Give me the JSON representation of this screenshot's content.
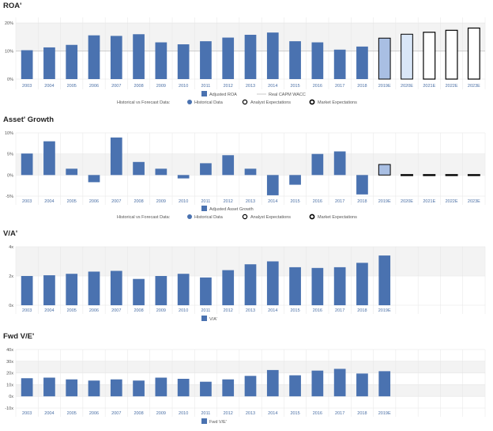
{
  "colors": {
    "bar": "#4a72b0",
    "forecast_fill_1": "#a9bfe3",
    "forecast_fill_2": "#d9e6f7",
    "forecast_stroke": "#000000",
    "grid": "#e6e6e6",
    "band": "#f3f3f3",
    "legend_text": "#555555",
    "axis_tick": "#4a6fa5"
  },
  "legend_labels": {
    "forecast_caption": "Historical vs Forecast Data:",
    "historical": "Historical Data",
    "analyst": "Analyst Expectations",
    "market": "Market Expectations",
    "wacc": "Real CAPM WACC"
  },
  "chart_data": [
    {
      "type": "bar",
      "title": "ROA'",
      "categories": [
        "2003",
        "2004",
        "2005",
        "2006",
        "2007",
        "2008",
        "2009",
        "2010",
        "2011",
        "2012",
        "2013",
        "2014",
        "2015",
        "2016",
        "2017",
        "2018",
        "2019E",
        "2020E",
        "2021E",
        "2022E",
        "2023E"
      ],
      "values": [
        10.3,
        11.3,
        12.2,
        15.6,
        15.4,
        16.0,
        13.1,
        12.4,
        13.5,
        14.8,
        15.8,
        16.6,
        13.5,
        13.1,
        10.5,
        11.6,
        14.6,
        16.0,
        16.7,
        17.4,
        18.2
      ],
      "series": [
        {
          "name": "Adjusted ROA",
          "values": [
            10.3,
            11.3,
            12.2,
            15.6,
            15.4,
            16.0,
            13.1,
            12.4,
            13.5,
            14.8,
            15.8,
            16.6,
            13.5,
            13.1,
            10.5,
            11.6,
            14.6,
            16.0,
            16.7,
            17.4,
            18.2
          ]
        }
      ],
      "forecast_styles": [
        "",
        "",
        "",
        "",
        "",
        "",
        "",
        "",
        "",
        "",
        "",
        "",
        "",
        "",
        "",
        "",
        "analyst1",
        "analyst2",
        "market",
        "market",
        "market"
      ],
      "ylim": [
        0,
        22
      ],
      "yticks": [
        0,
        10,
        20
      ],
      "ytick_labels": [
        "0%",
        "10%",
        "20%"
      ],
      "wacc_line": 10,
      "legend": [
        "Adjusted ROA",
        "Real CAPM WACC"
      ],
      "show_forecast_legend": true
    },
    {
      "type": "bar",
      "title": "Asset' Growth",
      "categories": [
        "2003",
        "2004",
        "2005",
        "2006",
        "2007",
        "2008",
        "2009",
        "2010",
        "2011",
        "2012",
        "2013",
        "2014",
        "2015",
        "2016",
        "2017",
        "2018",
        "2019E",
        "2020E",
        "2021E",
        "2022E",
        "2023E"
      ],
      "values": [
        5.1,
        8.0,
        1.5,
        -1.7,
        8.9,
        3.1,
        1.5,
        -0.8,
        2.8,
        4.7,
        1.5,
        -4.8,
        -2.3,
        5.0,
        5.6,
        -4.6,
        2.5,
        0.1,
        0.1,
        0.1,
        0.1
      ],
      "series": [
        {
          "name": "Adjusted Asset Growth",
          "values": [
            5.1,
            8.0,
            1.5,
            -1.7,
            8.9,
            3.1,
            1.5,
            -0.8,
            2.8,
            4.7,
            1.5,
            -4.8,
            -2.3,
            5.0,
            5.6,
            -4.6,
            2.5,
            0.1,
            0.1,
            0.1,
            0.1
          ]
        }
      ],
      "forecast_styles": [
        "",
        "",
        "",
        "",
        "",
        "",
        "",
        "",
        "",
        "",
        "",
        "",
        "",
        "",
        "",
        "",
        "analyst1",
        "market",
        "market",
        "market",
        "market"
      ],
      "ylim": [
        -5,
        10
      ],
      "yticks": [
        -5,
        0,
        5,
        10
      ],
      "ytick_labels": [
        "-5%",
        "0%",
        "5%",
        "10%"
      ],
      "legend": [
        "Adjusted Asset Growth"
      ],
      "show_forecast_legend": true
    },
    {
      "type": "bar",
      "title": "V/A'",
      "categories": [
        "2003",
        "2004",
        "2005",
        "2006",
        "2007",
        "2008",
        "2009",
        "2010",
        "2011",
        "2012",
        "2013",
        "2014",
        "2015",
        "2016",
        "2017",
        "2018",
        "2019E",
        "",
        "",
        "",
        ""
      ],
      "values": [
        2.0,
        2.05,
        2.15,
        2.3,
        2.35,
        1.8,
        2.0,
        2.15,
        1.9,
        2.4,
        2.8,
        3.0,
        2.6,
        2.55,
        2.6,
        2.9,
        3.4,
        null,
        null,
        null,
        null
      ],
      "series": [
        {
          "name": "V/A'",
          "values": [
            2.0,
            2.05,
            2.15,
            2.3,
            2.35,
            1.8,
            2.0,
            2.15,
            1.9,
            2.4,
            2.8,
            3.0,
            2.6,
            2.55,
            2.6,
            2.9,
            3.4,
            null,
            null,
            null,
            null
          ]
        }
      ],
      "forecast_styles": [
        "",
        "",
        "",
        "",
        "",
        "",
        "",
        "",
        "",
        "",
        "",
        "",
        "",
        "",
        "",
        "",
        "",
        "",
        "",
        "",
        ""
      ],
      "ylim": [
        0,
        4
      ],
      "yticks": [
        0,
        2,
        4
      ],
      "ytick_labels": [
        "0x",
        "2x",
        "4x"
      ],
      "legend": [
        "V/A'"
      ],
      "show_forecast_legend": false
    },
    {
      "type": "bar",
      "title": "Fwd V/E'",
      "categories": [
        "2003",
        "2004",
        "2005",
        "2006",
        "2007",
        "2008",
        "2009",
        "2010",
        "2011",
        "2012",
        "2013",
        "2014",
        "2015",
        "2016",
        "2017",
        "2018",
        "2019E",
        "",
        "",
        "",
        ""
      ],
      "values": [
        15.5,
        16.0,
        14.5,
        13.5,
        14.5,
        13.5,
        16.0,
        15.0,
        12.5,
        14.5,
        17.5,
        22.5,
        18.0,
        22.0,
        23.5,
        19.5,
        21.5,
        null,
        null,
        null,
        null
      ],
      "series": [
        {
          "name": "Fwd V/E'",
          "values": [
            15.5,
            16.0,
            14.5,
            13.5,
            14.5,
            13.5,
            16.0,
            15.0,
            12.5,
            14.5,
            17.5,
            22.5,
            18.0,
            22.0,
            23.5,
            19.5,
            21.5,
            null,
            null,
            null,
            null
          ]
        }
      ],
      "forecast_styles": [
        "",
        "",
        "",
        "",
        "",
        "",
        "",
        "",
        "",
        "",
        "",
        "",
        "",
        "",
        "",
        "",
        "",
        "",
        "",
        "",
        ""
      ],
      "ylim": [
        -10,
        40
      ],
      "yticks": [
        -10,
        0,
        10,
        20,
        30,
        40
      ],
      "ytick_labels": [
        "-10x",
        "0x",
        "10x",
        "20x",
        "30x",
        "40x"
      ],
      "legend": [
        "Fwd V/E'"
      ],
      "show_forecast_legend": false
    }
  ]
}
